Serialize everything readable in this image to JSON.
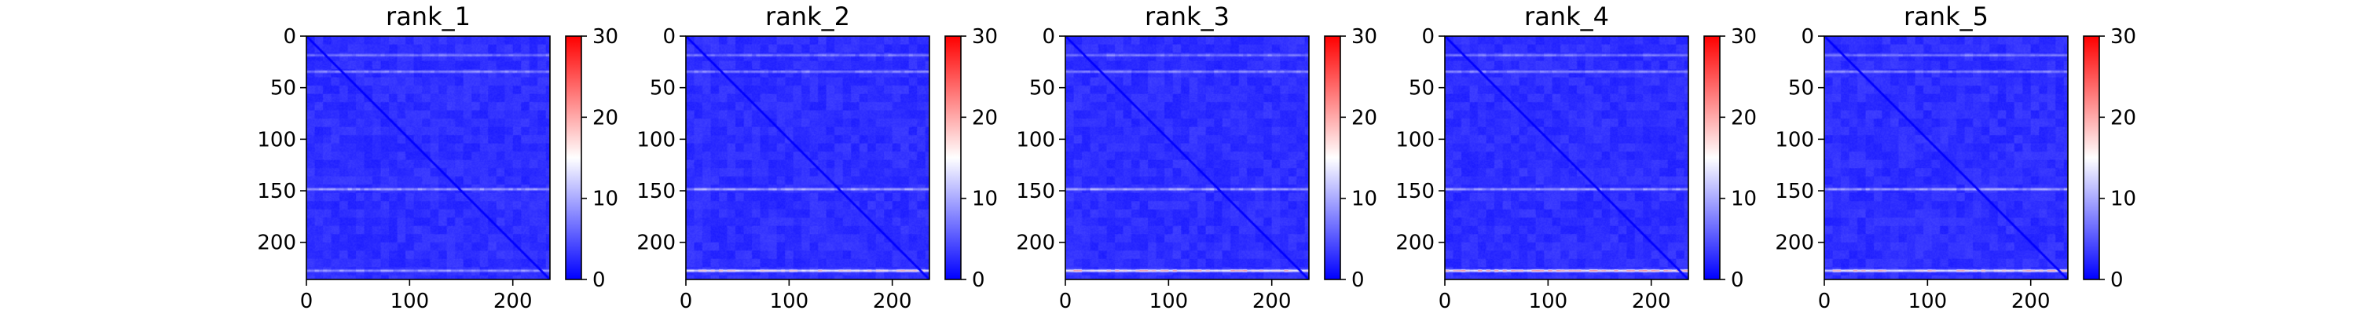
{
  "chart_data": [
    {
      "type": "heatmap",
      "title": "rank_1",
      "x_ticks": [
        "0",
        "100",
        "200"
      ],
      "y_ticks": [
        "0",
        "50",
        "100",
        "150",
        "200"
      ],
      "xlim": [
        0,
        236
      ],
      "ylim": [
        236,
        0
      ],
      "colorbar": {
        "ticks": [
          "0",
          "10",
          "20",
          "30"
        ],
        "min": 0,
        "max": 30,
        "colormap": [
          "#0000ff",
          "#ffffff",
          "#ff0000"
        ]
      },
      "description_values": {
        "background_level": 2,
        "diagonal_level": 0,
        "bright_rows": [
          [
            18,
            8
          ],
          [
            34,
            9
          ],
          [
            148,
            11
          ],
          [
            227,
            10
          ]
        ],
        "bottom_row_peak": 10
      }
    },
    {
      "type": "heatmap",
      "title": "rank_2",
      "x_ticks": [
        "0",
        "100",
        "200"
      ],
      "y_ticks": [
        "0",
        "50",
        "100",
        "150",
        "200"
      ],
      "xlim": [
        0,
        236
      ],
      "ylim": [
        236,
        0
      ],
      "colorbar": {
        "ticks": [
          "0",
          "10",
          "20",
          "30"
        ],
        "min": 0,
        "max": 30,
        "colormap": [
          "#0000ff",
          "#ffffff",
          "#ff0000"
        ]
      },
      "description_values": {
        "background_level": 2,
        "diagonal_level": 0,
        "bright_rows": [
          [
            18,
            8
          ],
          [
            34,
            9
          ],
          [
            148,
            11
          ],
          [
            227,
            19
          ]
        ],
        "bottom_row_peak": 19
      }
    },
    {
      "type": "heatmap",
      "title": "rank_3",
      "x_ticks": [
        "0",
        "100",
        "200"
      ],
      "y_ticks": [
        "0",
        "50",
        "100",
        "150",
        "200"
      ],
      "xlim": [
        0,
        236
      ],
      "ylim": [
        236,
        0
      ],
      "colorbar": {
        "ticks": [
          "0",
          "10",
          "20",
          "30"
        ],
        "min": 0,
        "max": 30,
        "colormap": [
          "#0000ff",
          "#ffffff",
          "#ff0000"
        ]
      },
      "description_values": {
        "background_level": 2,
        "diagonal_level": 0,
        "bright_rows": [
          [
            18,
            8
          ],
          [
            34,
            9
          ],
          [
            148,
            11
          ],
          [
            227,
            21
          ]
        ],
        "bottom_row_peak": 21
      }
    },
    {
      "type": "heatmap",
      "title": "rank_4",
      "x_ticks": [
        "0",
        "100",
        "200"
      ],
      "y_ticks": [
        "0",
        "50",
        "100",
        "150",
        "200"
      ],
      "xlim": [
        0,
        236
      ],
      "ylim": [
        236,
        0
      ],
      "colorbar": {
        "ticks": [
          "0",
          "10",
          "20",
          "30"
        ],
        "min": 0,
        "max": 30,
        "colormap": [
          "#0000ff",
          "#ffffff",
          "#ff0000"
        ]
      },
      "description_values": {
        "background_level": 2,
        "diagonal_level": 0,
        "bright_rows": [
          [
            18,
            8
          ],
          [
            34,
            9
          ],
          [
            148,
            11
          ],
          [
            227,
            22
          ]
        ],
        "bottom_row_peak": 22
      }
    },
    {
      "type": "heatmap",
      "title": "rank_5",
      "x_ticks": [
        "0",
        "100",
        "200"
      ],
      "y_ticks": [
        "0",
        "50",
        "100",
        "150",
        "200"
      ],
      "xlim": [
        0,
        236
      ],
      "ylim": [
        236,
        0
      ],
      "colorbar": {
        "ticks": [
          "0",
          "10",
          "20",
          "30"
        ],
        "min": 0,
        "max": 30,
        "colormap": [
          "#0000ff",
          "#ffffff",
          "#ff0000"
        ]
      },
      "description_values": {
        "background_level": 2,
        "diagonal_level": 0,
        "bright_rows": [
          [
            18,
            8
          ],
          [
            34,
            9
          ],
          [
            148,
            11
          ],
          [
            227,
            20
          ]
        ],
        "bottom_row_peak": 20
      }
    }
  ]
}
